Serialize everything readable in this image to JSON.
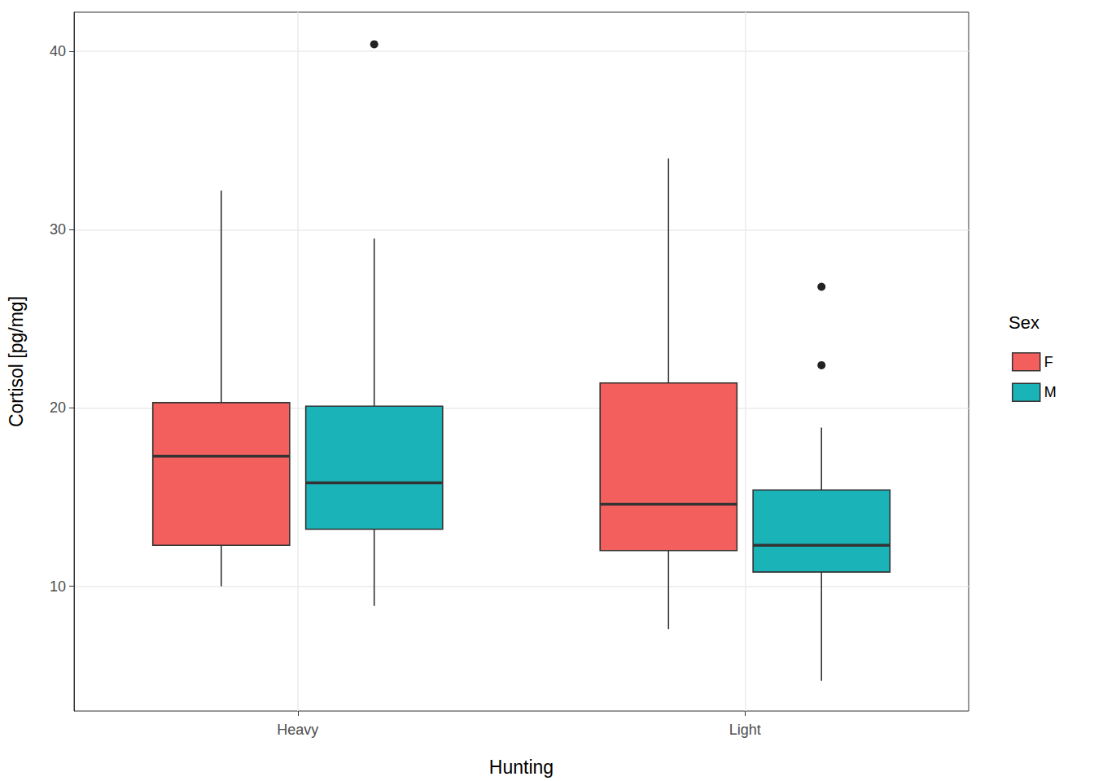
{
  "chart_data": {
    "type": "boxplot",
    "x_label": "Hunting",
    "y_label": "Cortisol [pg/mg]",
    "categories": [
      "Heavy",
      "Light"
    ],
    "series": [
      {
        "name": "F",
        "color": "#F25F5C",
        "values": [
          [
            10.0,
            12.3,
            17.3,
            20.3,
            32.2
          ],
          [
            7.6,
            12.0,
            14.6,
            21.4,
            34.0
          ]
        ],
        "outliers": [
          [],
          []
        ]
      },
      {
        "name": "M",
        "color": "#1AB3B8",
        "values": [
          [
            8.9,
            13.2,
            15.8,
            20.1,
            29.5
          ],
          [
            4.7,
            10.8,
            12.3,
            15.4,
            18.9
          ]
        ],
        "outliers": [
          [
            40.4
          ],
          [
            22.4,
            26.8
          ]
        ]
      }
    ],
    "ylim": [
      3.0,
      42.2
    ],
    "yticks": [
      10,
      20,
      30,
      40
    ],
    "grid": true,
    "legend": "right",
    "legend_title": "Sex"
  }
}
